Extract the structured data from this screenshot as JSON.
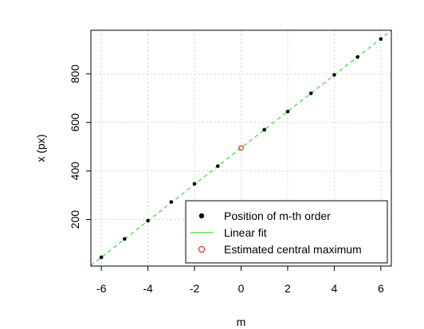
{
  "chart_data": {
    "type": "scatter",
    "title": "",
    "xlabel": "m",
    "ylabel": "x (px)",
    "xlim": [
      -6.45,
      6.45
    ],
    "ylim": [
      8,
      980
    ],
    "x_ticks": [
      -6,
      -4,
      -2,
      0,
      2,
      4,
      6
    ],
    "x_tick_labels": [
      "-6",
      "-4",
      "-2",
      "0",
      "2",
      "4",
      "6"
    ],
    "y_ticks": [
      200,
      400,
      600,
      800
    ],
    "y_tick_labels": [
      "200",
      "400",
      "600",
      "800"
    ],
    "grid": true,
    "legend_position": "bottom-right",
    "series": [
      {
        "name": "Position of m-th order",
        "kind": "points",
        "color": "#000000",
        "x": [
          -6,
          -5,
          -4,
          -3,
          -2,
          -1,
          1,
          2,
          3,
          4,
          5,
          6
        ],
        "y": [
          44,
          120,
          195,
          272,
          347,
          420,
          570,
          645,
          720,
          796,
          870,
          944
        ]
      },
      {
        "name": "Linear fit",
        "kind": "line",
        "color": "#33dd33",
        "slope": 75.1,
        "intercept": 494.9
      },
      {
        "name": "Estimated central maximum",
        "kind": "open-point",
        "color": "#dd0000",
        "x": [
          0
        ],
        "y": [
          495
        ]
      }
    ],
    "legend": [
      {
        "label": "Position of m-th order",
        "symbol": "filled-circle",
        "color": "#000000"
      },
      {
        "label": "Linear fit",
        "symbol": "line",
        "color": "#33dd33"
      },
      {
        "label": "Estimated central maximum",
        "symbol": "open-circle",
        "color": "#dd0000"
      }
    ]
  }
}
